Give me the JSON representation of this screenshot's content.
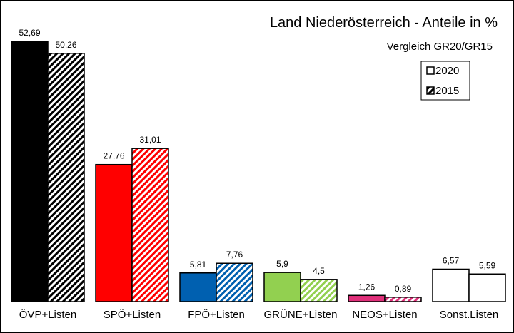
{
  "chart_data": {
    "type": "bar",
    "title": "Land Niederösterreich  - Anteile in %",
    "subtitle": "Vergleich GR20/GR15",
    "categories": [
      "ÖVP+Listen",
      "SPÖ+Listen",
      "FPÖ+Listen",
      "GRÜNE+Listen",
      "NEOS+Listen",
      "Sonst.Listen"
    ],
    "series": [
      {
        "name": "2020",
        "values": [
          52.69,
          27.76,
          5.81,
          5.9,
          1.26,
          6.57
        ],
        "labels": [
          "52,69",
          "27,76",
          "5,81",
          "5,9",
          "1,26",
          "6,57"
        ]
      },
      {
        "name": "2015",
        "values": [
          50.26,
          31.01,
          7.76,
          4.5,
          0.89,
          5.59
        ],
        "labels": [
          "50,26",
          "31,01",
          "7,76",
          "4,5",
          "0,89",
          "5,59"
        ]
      }
    ],
    "category_colors": [
      "#000000",
      "#ff0000",
      "#0060b0",
      "#92d050",
      "#e0307a",
      "#ffffff"
    ],
    "series_styles": [
      "solid",
      "hatched"
    ],
    "ylim": [
      0,
      53
    ],
    "grid": false,
    "legend": "top-right"
  }
}
